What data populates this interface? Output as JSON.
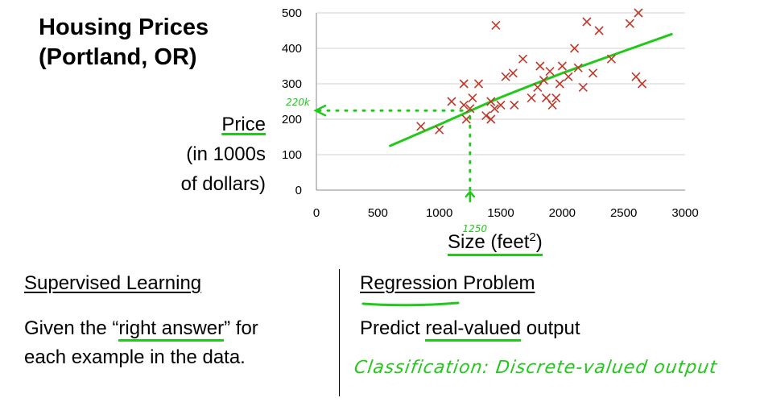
{
  "title_line1": "Housing Prices",
  "title_line2": "(Portland, OR)",
  "chart_data": {
    "type": "scatter",
    "title": "",
    "xlabel": "Size (feet²)",
    "xlabel_main": "Size (feet",
    "xlabel_sup": "2",
    "xlabel_close": ")",
    "ylabel_lines": [
      "Price",
      "(in 1000s",
      "of dollars)"
    ],
    "xlim": [
      0,
      3000
    ],
    "ylim": [
      0,
      500
    ],
    "xticks": [
      0,
      500,
      1000,
      1500,
      2000,
      2500,
      3000
    ],
    "yticks": [
      0,
      100,
      200,
      300,
      400,
      500
    ],
    "grid": true,
    "marker": "x",
    "marker_color": "#c0392b",
    "annotation_color": "#22c91b",
    "points": [
      {
        "x": 850,
        "y": 180
      },
      {
        "x": 1000,
        "y": 170
      },
      {
        "x": 1100,
        "y": 250
      },
      {
        "x": 1200,
        "y": 300
      },
      {
        "x": 1200,
        "y": 240
      },
      {
        "x": 1220,
        "y": 200
      },
      {
        "x": 1250,
        "y": 230
      },
      {
        "x": 1270,
        "y": 260
      },
      {
        "x": 1320,
        "y": 300
      },
      {
        "x": 1380,
        "y": 210
      },
      {
        "x": 1420,
        "y": 200
      },
      {
        "x": 1420,
        "y": 250
      },
      {
        "x": 1450,
        "y": 230
      },
      {
        "x": 1460,
        "y": 465
      },
      {
        "x": 1500,
        "y": 240
      },
      {
        "x": 1540,
        "y": 320
      },
      {
        "x": 1600,
        "y": 330
      },
      {
        "x": 1610,
        "y": 240
      },
      {
        "x": 1680,
        "y": 370
      },
      {
        "x": 1750,
        "y": 260
      },
      {
        "x": 1800,
        "y": 290
      },
      {
        "x": 1820,
        "y": 350
      },
      {
        "x": 1850,
        "y": 310
      },
      {
        "x": 1870,
        "y": 260
      },
      {
        "x": 1900,
        "y": 335
      },
      {
        "x": 1920,
        "y": 240
      },
      {
        "x": 1950,
        "y": 260
      },
      {
        "x": 1980,
        "y": 300
      },
      {
        "x": 2000,
        "y": 350
      },
      {
        "x": 2050,
        "y": 320
      },
      {
        "x": 2100,
        "y": 400
      },
      {
        "x": 2130,
        "y": 345
      },
      {
        "x": 2170,
        "y": 290
      },
      {
        "x": 2200,
        "y": 475
      },
      {
        "x": 2250,
        "y": 330
      },
      {
        "x": 2300,
        "y": 450
      },
      {
        "x": 2400,
        "y": 370
      },
      {
        "x": 2550,
        "y": 470
      },
      {
        "x": 2600,
        "y": 320
      },
      {
        "x": 2620,
        "y": 500
      },
      {
        "x": 2650,
        "y": 300
      }
    ],
    "fit_line": [
      {
        "x": 600,
        "y": 125
      },
      {
        "x": 1000,
        "y": 185
      },
      {
        "x": 1500,
        "y": 262
      },
      {
        "x": 2000,
        "y": 330
      },
      {
        "x": 2500,
        "y": 392
      },
      {
        "x": 2890,
        "y": 440
      }
    ],
    "annotations": {
      "query_x": 1250,
      "query_y": 220,
      "x_label": "1250",
      "y_label": "220k"
    }
  },
  "left": {
    "heading": "Supervised Learning",
    "text_before": "Given the “",
    "text_highlight": "right answer",
    "text_after": "” for",
    "text_line2": "each example in the data."
  },
  "right": {
    "heading": "Regression Problem",
    "text_before": "Predict ",
    "text_highlight": "real-valued",
    "text_after": " output",
    "note": "Classification: Discrete-valued output"
  }
}
